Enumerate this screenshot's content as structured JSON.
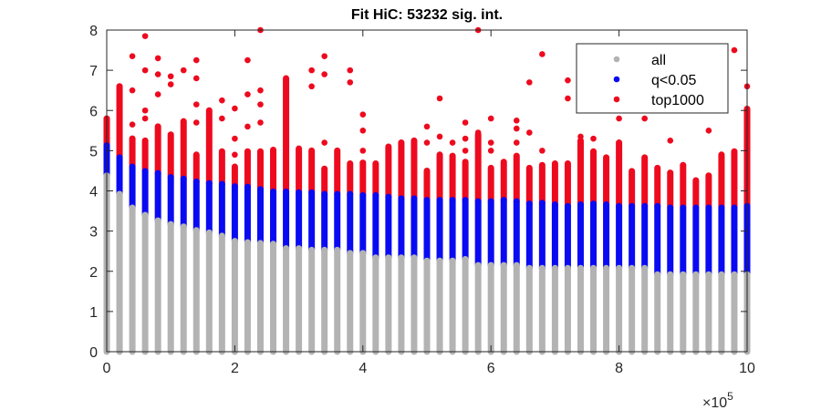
{
  "chart_data": {
    "type": "scatter",
    "title": "Fit HiC: 53232 sig. int.",
    "xlabel": "",
    "ylabel": "",
    "x_multiplier_label": "×10",
    "x_multiplier_exp": "5",
    "xlim": [
      0,
      10
    ],
    "ylim": [
      0,
      8
    ],
    "xticks": [
      "0",
      "2",
      "4",
      "6",
      "8",
      "10"
    ],
    "yticks": [
      "0",
      "1",
      "2",
      "3",
      "4",
      "5",
      "6",
      "7",
      "8"
    ],
    "legend": {
      "placement": "top-right",
      "entries": [
        "all",
        "q<0.05",
        "top1000"
      ]
    },
    "colors": {
      "all": "#b3b3b3",
      "q<0.05": "#0a0af2",
      "top1000": "#ee0a1e"
    },
    "columns": {
      "x": [
        0,
        0.2,
        0.4,
        0.6,
        0.8,
        1,
        1.2,
        1.4,
        1.6,
        1.8,
        2,
        2.2,
        2.4,
        2.6,
        2.8,
        3,
        3.2,
        3.4,
        3.6,
        3.8,
        4,
        4.2,
        4.4,
        4.6,
        4.8,
        5,
        5.2,
        5.4,
        5.6,
        5.8,
        6,
        6.2,
        6.4,
        6.6,
        6.8,
        7,
        7.2,
        7.4,
        7.6,
        7.8,
        8,
        8.2,
        8.4,
        8.6,
        8.8,
        9,
        9.2,
        9.4,
        9.6,
        9.8,
        10
      ],
      "all_max": [
        4.38,
        3.92,
        3.58,
        3.4,
        3.26,
        3.17,
        3.11,
        3.02,
        2.96,
        2.88,
        2.75,
        2.72,
        2.7,
        2.68,
        2.57,
        2.57,
        2.53,
        2.53,
        2.53,
        2.45,
        2.45,
        2.34,
        2.34,
        2.34,
        2.34,
        2.26,
        2.26,
        2.26,
        2.3,
        2.15,
        2.15,
        2.15,
        2.15,
        2.08,
        2.08,
        2.08,
        2.08,
        2.08,
        2.08,
        2.08,
        2.08,
        2.08,
        2.08,
        1.92,
        1.92,
        1.92,
        1.92,
        1.92,
        1.92,
        1.92,
        1.92
      ],
      "q005_max": [
        5.13,
        4.83,
        4.6,
        4.49,
        4.44,
        4.34,
        4.3,
        4.23,
        4.19,
        4.17,
        4.11,
        4.1,
        4.04,
        3.98,
        3.98,
        3.96,
        3.96,
        3.92,
        3.92,
        3.92,
        3.89,
        3.89,
        3.85,
        3.81,
        3.81,
        3.77,
        3.77,
        3.77,
        3.77,
        3.74,
        3.74,
        3.77,
        3.74,
        3.68,
        3.7,
        3.66,
        3.62,
        3.66,
        3.68,
        3.66,
        3.62,
        3.62,
        3.62,
        3.62,
        3.58,
        3.58,
        3.58,
        3.58,
        3.58,
        3.58,
        3.62
      ],
      "top1000_max": [
        5.8,
        6.6,
        5.3,
        5.25,
        5.6,
        5.4,
        5.73,
        4.9,
        6.0,
        4.98,
        4.6,
        4.98,
        4.98,
        5.02,
        6.8,
        5.05,
        5.0,
        4.55,
        5.0,
        4.68,
        4.7,
        4.68,
        5.1,
        5.2,
        5.25,
        4.5,
        4.9,
        4.87,
        4.72,
        5.4,
        4.57,
        4.72,
        4.87,
        4.57,
        4.64,
        4.68,
        4.68,
        5.25,
        4.98,
        4.83,
        5.2,
        4.49,
        4.83,
        4.57,
        4.45,
        4.64,
        4.26,
        4.38,
        4.9,
        4.98,
        6.04
      ]
    },
    "top1000_outliers": [
      [
        0.4,
        5.65
      ],
      [
        0.4,
        6.5
      ],
      [
        0.4,
        7.35
      ],
      [
        0.6,
        5.8
      ],
      [
        0.6,
        6.0
      ],
      [
        0.6,
        7.0
      ],
      [
        0.6,
        7.85
      ],
      [
        0.8,
        6.4
      ],
      [
        0.8,
        6.9
      ],
      [
        0.8,
        7.3
      ],
      [
        1.0,
        6.65
      ],
      [
        1.0,
        6.85
      ],
      [
        1.2,
        7.0
      ],
      [
        1.4,
        5.7
      ],
      [
        1.4,
        6.15
      ],
      [
        1.4,
        6.8
      ],
      [
        1.4,
        7.25
      ],
      [
        1.8,
        5.8
      ],
      [
        1.8,
        6.25
      ],
      [
        2.0,
        4.9
      ],
      [
        2.0,
        5.3
      ],
      [
        2.0,
        6.05
      ],
      [
        2.2,
        5.6
      ],
      [
        2.2,
        6.4
      ],
      [
        2.2,
        7.25
      ],
      [
        2.4,
        5.7
      ],
      [
        2.4,
        6.15
      ],
      [
        2.4,
        6.5
      ],
      [
        2.4,
        8.0
      ],
      [
        3.2,
        6.6
      ],
      [
        3.2,
        7.0
      ],
      [
        3.4,
        5.2
      ],
      [
        3.4,
        6.9
      ],
      [
        3.4,
        7.35
      ],
      [
        3.8,
        6.7
      ],
      [
        3.8,
        7.0
      ],
      [
        4.0,
        5.0
      ],
      [
        4.0,
        5.5
      ],
      [
        4.0,
        5.9
      ],
      [
        5.0,
        5.2
      ],
      [
        5.0,
        5.6
      ],
      [
        5.2,
        5.35
      ],
      [
        5.2,
        6.3
      ],
      [
        5.4,
        5.2
      ],
      [
        5.6,
        5.0
      ],
      [
        5.6,
        5.3
      ],
      [
        5.6,
        5.7
      ],
      [
        5.8,
        5.45
      ],
      [
        5.8,
        8.0
      ],
      [
        6.0,
        5.0
      ],
      [
        6.0,
        5.2
      ],
      [
        6.0,
        5.8
      ],
      [
        6.4,
        5.2
      ],
      [
        6.4,
        5.55
      ],
      [
        6.4,
        5.75
      ],
      [
        6.6,
        5.45
      ],
      [
        6.6,
        6.7
      ],
      [
        6.8,
        5.0
      ],
      [
        6.8,
        7.4
      ],
      [
        7.2,
        6.3
      ],
      [
        7.2,
        6.75
      ],
      [
        7.4,
        5.35
      ],
      [
        7.6,
        5.3
      ],
      [
        8.0,
        5.8
      ],
      [
        8.4,
        5.8
      ],
      [
        8.8,
        5.25
      ],
      [
        9.4,
        5.5
      ],
      [
        9.8,
        7.5
      ],
      [
        10.0,
        6.6
      ],
      [
        10.0,
        5.5
      ]
    ]
  }
}
